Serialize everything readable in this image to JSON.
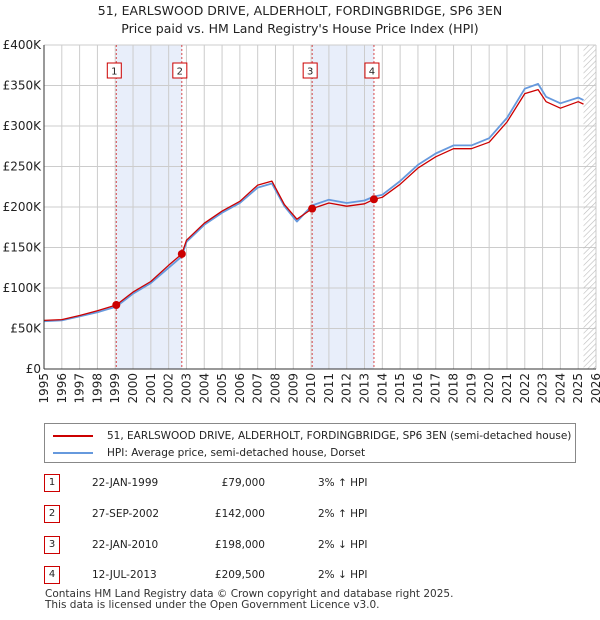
{
  "title": {
    "line1": "51, EARLSWOOD DRIVE, ALDERHOLT, FORDINGBRIDGE, SP6 3EN",
    "line2": "Price paid vs. HM Land Registry's House Price Index (HPI)"
  },
  "colors": {
    "property": "#cc0000",
    "hpi": "#6699dd",
    "shade": "#e8eefa",
    "grid": "#cccccc",
    "marker_border": "#cc0000"
  },
  "chart_data": {
    "type": "line",
    "x_range": [
      1995,
      2026
    ],
    "ylim": [
      0,
      400000
    ],
    "y_ticks": [
      0,
      50000,
      100000,
      150000,
      200000,
      250000,
      300000,
      350000,
      400000
    ],
    "y_tick_labels": [
      "£0",
      "£50K",
      "£100K",
      "£150K",
      "£200K",
      "£250K",
      "£300K",
      "£350K",
      "£400K"
    ],
    "x_ticks": [
      1995,
      1996,
      1997,
      1998,
      1999,
      2000,
      2001,
      2002,
      2003,
      2004,
      2005,
      2006,
      2007,
      2008,
      2009,
      2010,
      2011,
      2012,
      2013,
      2014,
      2015,
      2016,
      2017,
      2018,
      2019,
      2020,
      2021,
      2022,
      2023,
      2024,
      2025,
      2026
    ],
    "x_tick_labels": [
      "1995",
      "1996",
      "1997",
      "1998",
      "1999",
      "2000",
      "2001",
      "2002",
      "2003",
      "2004",
      "2005",
      "2006",
      "2007",
      "2008",
      "2009",
      "2010",
      "2011",
      "2012",
      "2013",
      "2014",
      "2015",
      "2016",
      "2017",
      "2018",
      "2019",
      "2020",
      "2021",
      "2022",
      "2023",
      "2024",
      "2025",
      "2026"
    ],
    "grid": true,
    "shaded_periods": [
      [
        1999.06,
        2002.74
      ],
      [
        2010.06,
        2013.53
      ]
    ],
    "data_end_year": 2025.3,
    "series": [
      {
        "name": "51, EARLSWOOD DRIVE, ALDERHOLT, FORDINGBRIDGE, SP6 3EN (semi-detached house)",
        "key": "property",
        "x": [
          1995,
          1996,
          1997,
          1998,
          1999.06,
          2000,
          2001,
          2002,
          2002.74,
          2003,
          2004,
          2005,
          2006,
          2007,
          2007.8,
          2008.5,
          2009.2,
          2010.06,
          2011,
          2012,
          2013,
          2013.53,
          2014,
          2015,
          2016,
          2017,
          2018,
          2019,
          2020,
          2021,
          2022,
          2022.75,
          2023.2,
          2024,
          2025,
          2025.3
        ],
        "values": [
          60000,
          61000,
          66000,
          72000,
          79000,
          95000,
          108000,
          128000,
          142000,
          159000,
          180000,
          195000,
          207000,
          227000,
          232000,
          203000,
          185000,
          198000,
          205000,
          201000,
          204000,
          209500,
          212000,
          228000,
          248000,
          262000,
          272000,
          272000,
          280000,
          305000,
          340000,
          345000,
          330000,
          322000,
          330000,
          327000
        ]
      },
      {
        "name": "HPI: Average price, semi-detached house, Dorset",
        "key": "hpi",
        "x": [
          1995,
          1996,
          1997,
          1998,
          1999.06,
          2000,
          2001,
          2002,
          2002.74,
          2003,
          2004,
          2005,
          2006,
          2007,
          2007.8,
          2008.5,
          2009.2,
          2010.06,
          2011,
          2012,
          2013,
          2013.53,
          2014,
          2015,
          2016,
          2017,
          2018,
          2019,
          2020,
          2021,
          2022,
          2022.75,
          2023.2,
          2024,
          2025,
          2025.3
        ],
        "values": [
          59000,
          60000,
          65000,
          70000,
          77000,
          93000,
          106000,
          125000,
          139000,
          157000,
          178000,
          193000,
          205000,
          224000,
          229000,
          201000,
          182000,
          202000,
          209000,
          205000,
          208000,
          213000,
          215000,
          232000,
          252000,
          266000,
          276000,
          276000,
          285000,
          310000,
          346000,
          352000,
          336000,
          328000,
          335000,
          332000
        ]
      }
    ],
    "sales": [
      {
        "label": "1",
        "x": 1999.06,
        "value": 79000
      },
      {
        "label": "2",
        "x": 2002.74,
        "value": 142000
      },
      {
        "label": "3",
        "x": 2010.06,
        "value": 198000
      },
      {
        "label": "4",
        "x": 2013.53,
        "value": 209500
      }
    ]
  },
  "legend": {
    "property_label": "51, EARLSWOOD DRIVE, ALDERHOLT, FORDINGBRIDGE, SP6 3EN (semi-detached house)",
    "hpi_label": "HPI: Average price, semi-detached house, Dorset"
  },
  "transactions": [
    {
      "num": "1",
      "date": "22-JAN-1999",
      "price": "£79,000",
      "hpi": "3% ↑ HPI"
    },
    {
      "num": "2",
      "date": "27-SEP-2002",
      "price": "£142,000",
      "hpi": "2% ↑ HPI"
    },
    {
      "num": "3",
      "date": "22-JAN-2010",
      "price": "£198,000",
      "hpi": "2% ↓ HPI"
    },
    {
      "num": "4",
      "date": "12-JUL-2013",
      "price": "£209,500",
      "hpi": "2% ↓ HPI"
    }
  ],
  "footer": {
    "line1": "Contains HM Land Registry data © Crown copyright and database right 2025.",
    "line2": "This data is licensed under the Open Government Licence v3.0."
  }
}
